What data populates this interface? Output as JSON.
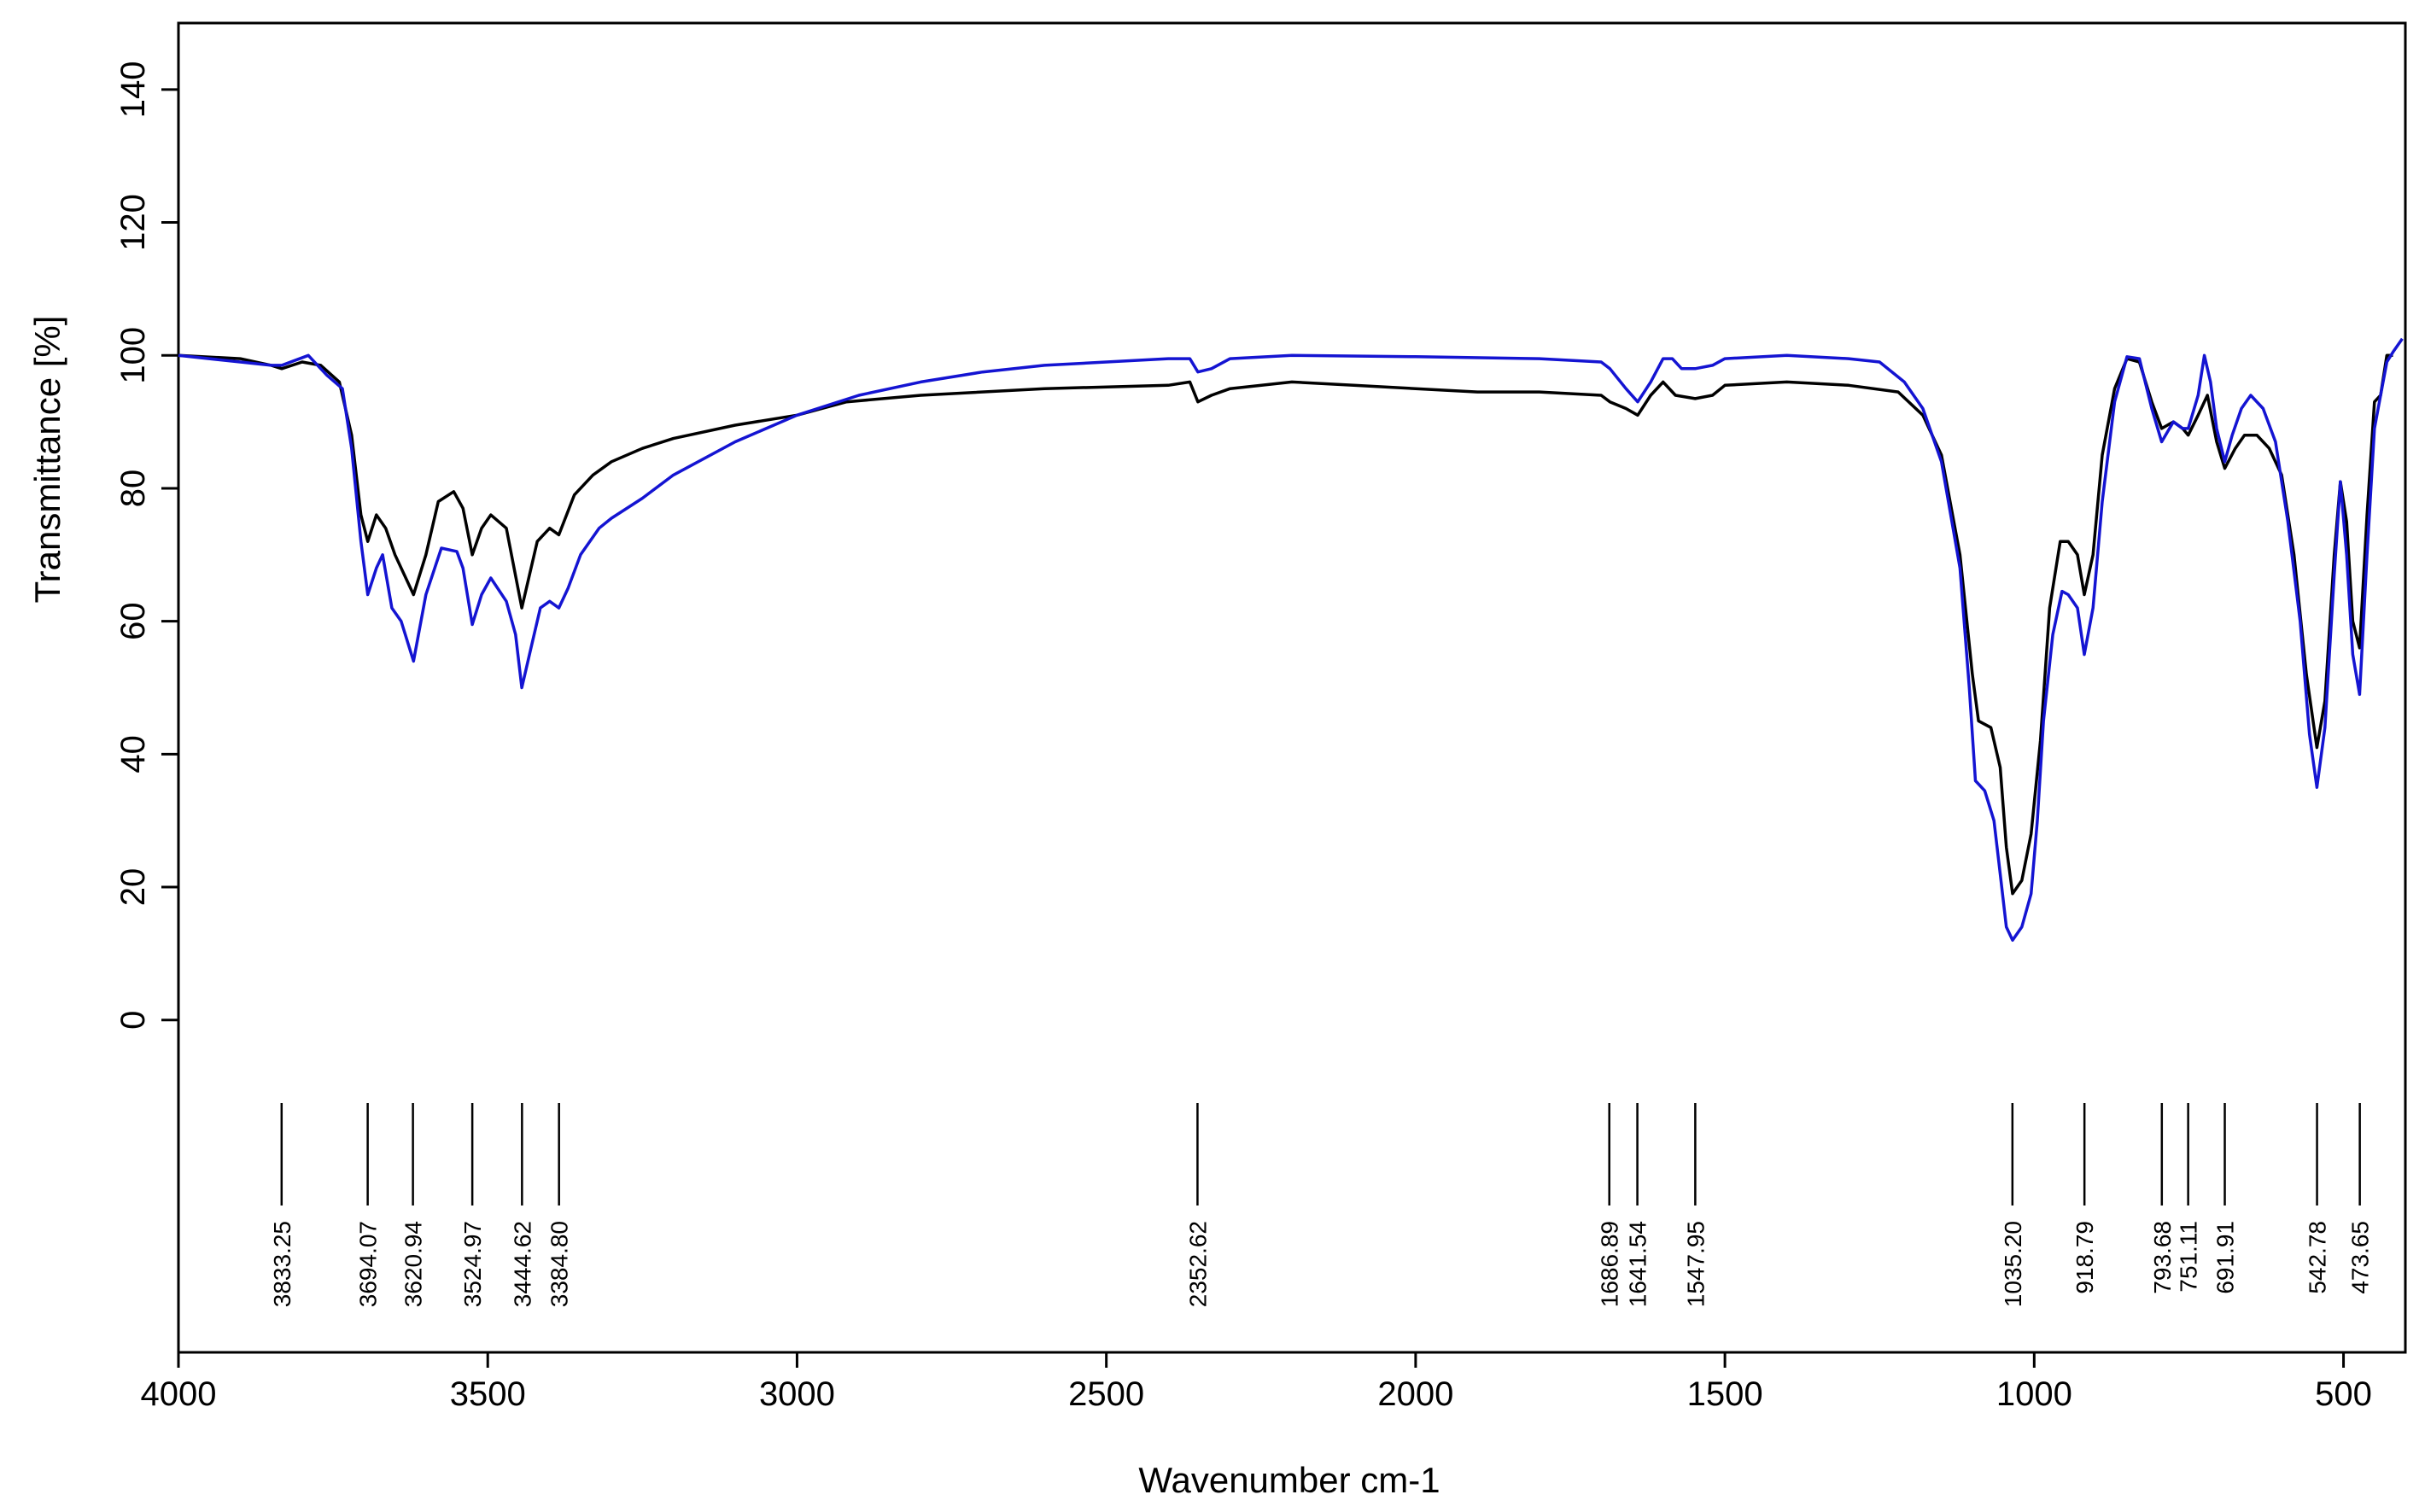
{
  "chart_data": {
    "type": "line",
    "title": "",
    "xlabel": "Wavenumber cm-1",
    "ylabel": "Transmittance [%]",
    "xlim": [
      4000,
      400
    ],
    "ylim": [
      -50,
      150
    ],
    "x_ticks": [
      4000,
      3500,
      3000,
      2500,
      2000,
      1500,
      1000,
      500
    ],
    "x_tick_labels": [
      "4000",
      "3500",
      "3000",
      "2500",
      "2000",
      "1500",
      "1000",
      "500"
    ],
    "y_ticks": [
      0,
      20,
      40,
      60,
      80,
      100,
      120,
      140
    ],
    "y_tick_labels": [
      "0",
      "20",
      "40",
      "60",
      "80",
      "100",
      "120",
      "140"
    ],
    "grid": false,
    "legend": "none",
    "series": [
      {
        "color": "#000000",
        "points": [
          [
            4000,
            100
          ],
          [
            3900,
            99.5
          ],
          [
            3850,
            98.5
          ],
          [
            3833,
            98
          ],
          [
            3800,
            99
          ],
          [
            3770,
            98.5
          ],
          [
            3740,
            96
          ],
          [
            3720,
            88
          ],
          [
            3705,
            76
          ],
          [
            3694,
            72
          ],
          [
            3680,
            76
          ],
          [
            3665,
            74
          ],
          [
            3650,
            70
          ],
          [
            3620,
            64
          ],
          [
            3600,
            70
          ],
          [
            3580,
            78
          ],
          [
            3555,
            79.5
          ],
          [
            3540,
            77
          ],
          [
            3525,
            70
          ],
          [
            3510,
            74
          ],
          [
            3495,
            76
          ],
          [
            3470,
            74
          ],
          [
            3445,
            62
          ],
          [
            3420,
            72
          ],
          [
            3400,
            74
          ],
          [
            3385,
            73
          ],
          [
            3360,
            79
          ],
          [
            3330,
            82
          ],
          [
            3300,
            84
          ],
          [
            3250,
            86
          ],
          [
            3200,
            87.5
          ],
          [
            3100,
            89.5
          ],
          [
            3000,
            91
          ],
          [
            2920,
            93
          ],
          [
            2800,
            94
          ],
          [
            2600,
            95
          ],
          [
            2400,
            95.5
          ],
          [
            2365,
            96
          ],
          [
            2352,
            93
          ],
          [
            2330,
            94
          ],
          [
            2300,
            95
          ],
          [
            2200,
            96
          ],
          [
            2100,
            95.5
          ],
          [
            2000,
            95
          ],
          [
            1900,
            94.5
          ],
          [
            1800,
            94.5
          ],
          [
            1700,
            94
          ],
          [
            1686,
            93
          ],
          [
            1660,
            92
          ],
          [
            1641,
            91
          ],
          [
            1620,
            94
          ],
          [
            1600,
            96
          ],
          [
            1580,
            94
          ],
          [
            1548,
            93.5
          ],
          [
            1520,
            94
          ],
          [
            1500,
            95.5
          ],
          [
            1400,
            96
          ],
          [
            1300,
            95.5
          ],
          [
            1220,
            94.5
          ],
          [
            1180,
            91
          ],
          [
            1150,
            85
          ],
          [
            1120,
            70
          ],
          [
            1100,
            52
          ],
          [
            1090,
            45
          ],
          [
            1070,
            44
          ],
          [
            1055,
            38
          ],
          [
            1045,
            26
          ],
          [
            1035,
            19
          ],
          [
            1020,
            21
          ],
          [
            1005,
            28
          ],
          [
            990,
            42
          ],
          [
            975,
            62
          ],
          [
            958,
            72
          ],
          [
            945,
            72
          ],
          [
            930,
            70
          ],
          [
            919,
            64
          ],
          [
            905,
            70
          ],
          [
            890,
            85
          ],
          [
            870,
            95
          ],
          [
            850,
            99.5
          ],
          [
            830,
            99
          ],
          [
            810,
            93
          ],
          [
            794,
            89
          ],
          [
            775,
            90
          ],
          [
            760,
            89
          ],
          [
            751,
            88
          ],
          [
            735,
            91
          ],
          [
            720,
            94
          ],
          [
            705,
            87
          ],
          [
            692,
            83
          ],
          [
            675,
            86
          ],
          [
            660,
            88
          ],
          [
            640,
            88
          ],
          [
            620,
            86
          ],
          [
            600,
            82
          ],
          [
            580,
            70
          ],
          [
            560,
            52
          ],
          [
            543,
            41
          ],
          [
            530,
            48
          ],
          [
            515,
            70
          ],
          [
            505,
            81
          ],
          [
            495,
            75
          ],
          [
            485,
            60
          ],
          [
            474,
            56
          ],
          [
            462,
            76
          ],
          [
            450,
            93
          ],
          [
            440,
            94
          ],
          [
            430,
            100
          ],
          [
            420,
            100
          ]
        ]
      },
      {
        "color": "#1414d2",
        "points": [
          [
            4000,
            100
          ],
          [
            3900,
            99
          ],
          [
            3850,
            98.5
          ],
          [
            3833,
            98.5
          ],
          [
            3790,
            100
          ],
          [
            3760,
            97
          ],
          [
            3735,
            95
          ],
          [
            3720,
            86
          ],
          [
            3705,
            72
          ],
          [
            3694,
            64
          ],
          [
            3680,
            68
          ],
          [
            3670,
            70
          ],
          [
            3655,
            62
          ],
          [
            3640,
            60
          ],
          [
            3620,
            54
          ],
          [
            3600,
            64
          ],
          [
            3575,
            71
          ],
          [
            3550,
            70.5
          ],
          [
            3540,
            68
          ],
          [
            3525,
            59.5
          ],
          [
            3510,
            64
          ],
          [
            3495,
            66.5
          ],
          [
            3470,
            63
          ],
          [
            3455,
            58
          ],
          [
            3445,
            50
          ],
          [
            3430,
            56
          ],
          [
            3415,
            62
          ],
          [
            3400,
            63
          ],
          [
            3385,
            62
          ],
          [
            3370,
            65
          ],
          [
            3350,
            70
          ],
          [
            3320,
            74
          ],
          [
            3300,
            75.5
          ],
          [
            3250,
            78.5
          ],
          [
            3200,
            82
          ],
          [
            3100,
            87
          ],
          [
            3000,
            91
          ],
          [
            2900,
            94
          ],
          [
            2800,
            96
          ],
          [
            2700,
            97.5
          ],
          [
            2600,
            98.5
          ],
          [
            2500,
            99
          ],
          [
            2400,
            99.5
          ],
          [
            2365,
            99.5
          ],
          [
            2352,
            97.5
          ],
          [
            2330,
            98
          ],
          [
            2300,
            99.5
          ],
          [
            2200,
            100
          ],
          [
            2000,
            99.8
          ],
          [
            1800,
            99.5
          ],
          [
            1700,
            99
          ],
          [
            1686,
            98
          ],
          [
            1660,
            95
          ],
          [
            1641,
            93
          ],
          [
            1620,
            96
          ],
          [
            1600,
            99.5
          ],
          [
            1585,
            99.5
          ],
          [
            1570,
            98
          ],
          [
            1548,
            98
          ],
          [
            1520,
            98.5
          ],
          [
            1500,
            99.5
          ],
          [
            1400,
            100
          ],
          [
            1300,
            99.5
          ],
          [
            1250,
            99
          ],
          [
            1210,
            96
          ],
          [
            1180,
            92
          ],
          [
            1150,
            84
          ],
          [
            1120,
            68
          ],
          [
            1105,
            50
          ],
          [
            1095,
            36
          ],
          [
            1080,
            34.5
          ],
          [
            1065,
            30
          ],
          [
            1055,
            22
          ],
          [
            1045,
            14
          ],
          [
            1035,
            12
          ],
          [
            1020,
            14
          ],
          [
            1005,
            19
          ],
          [
            995,
            30
          ],
          [
            985,
            45
          ],
          [
            970,
            58
          ],
          [
            955,
            64.5
          ],
          [
            945,
            64
          ],
          [
            930,
            62
          ],
          [
            919,
            55
          ],
          [
            905,
            62
          ],
          [
            890,
            78
          ],
          [
            870,
            93
          ],
          [
            850,
            99.8
          ],
          [
            830,
            99.5
          ],
          [
            810,
            92
          ],
          [
            794,
            87
          ],
          [
            775,
            90
          ],
          [
            760,
            89
          ],
          [
            751,
            89
          ],
          [
            735,
            94
          ],
          [
            725,
            100
          ],
          [
            715,
            96
          ],
          [
            705,
            89
          ],
          [
            692,
            84
          ],
          [
            680,
            88
          ],
          [
            665,
            92
          ],
          [
            650,
            94
          ],
          [
            630,
            92
          ],
          [
            610,
            87
          ],
          [
            590,
            75
          ],
          [
            570,
            60
          ],
          [
            555,
            43
          ],
          [
            543,
            35
          ],
          [
            530,
            44
          ],
          [
            515,
            67
          ],
          [
            505,
            81
          ],
          [
            495,
            70
          ],
          [
            485,
            55
          ],
          [
            474,
            49
          ],
          [
            462,
            70
          ],
          [
            450,
            89
          ],
          [
            440,
            94
          ],
          [
            430,
            99
          ],
          [
            420,
            100.5
          ],
          [
            405,
            102.5
          ]
        ]
      }
    ],
    "peak_labels": [
      {
        "x": 3833.25,
        "label": "3833.25"
      },
      {
        "x": 3694.07,
        "label": "3694.07"
      },
      {
        "x": 3620.94,
        "label": "3620.94"
      },
      {
        "x": 3524.97,
        "label": "3524.97"
      },
      {
        "x": 3444.62,
        "label": "3444.62"
      },
      {
        "x": 3384.8,
        "label": "3384.80"
      },
      {
        "x": 2352.62,
        "label": "2352.62"
      },
      {
        "x": 1686.89,
        "label": "1686.89"
      },
      {
        "x": 1641.54,
        "label": "1641.54"
      },
      {
        "x": 1547.95,
        "label": "1547.95"
      },
      {
        "x": 1035.2,
        "label": "1035.20"
      },
      {
        "x": 918.79,
        "label": "918.79"
      },
      {
        "x": 793.68,
        "label": "793.68"
      },
      {
        "x": 751.11,
        "label": "751.11"
      },
      {
        "x": 691.91,
        "label": "691.91"
      },
      {
        "x": 542.78,
        "label": "542.78"
      },
      {
        "x": 473.65,
        "label": "473.65"
      }
    ]
  }
}
